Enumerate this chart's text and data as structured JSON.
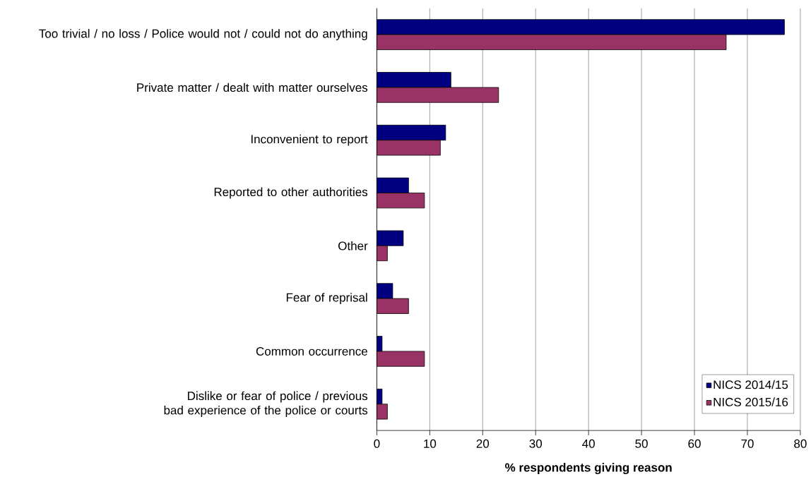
{
  "chart_data": {
    "type": "bar",
    "orientation": "horizontal",
    "categories": [
      "Too trivial / no loss / Police would not / could not do anything",
      "Private matter / dealt with matter ourselves",
      "Inconvenient to report",
      "Reported to other authorities",
      "Other",
      "Fear of reprisal",
      "Common occurrence",
      "Dislike or fear of police / previous bad experience of the police or courts"
    ],
    "series": [
      {
        "name": "NICS 2014/15",
        "color": "#000080",
        "values": [
          77,
          14,
          13,
          6,
          5,
          3,
          1,
          1
        ]
      },
      {
        "name": "NICS 2015/16",
        "color": "#993366",
        "values": [
          66,
          23,
          12,
          9,
          2,
          6,
          9,
          2
        ]
      }
    ],
    "xlabel": "% respondents giving reason",
    "xlim": [
      0,
      80
    ],
    "xticks": [
      0,
      10,
      20,
      30,
      40,
      50,
      60,
      70,
      80
    ],
    "grid": "x",
    "legend": "bottom right"
  }
}
